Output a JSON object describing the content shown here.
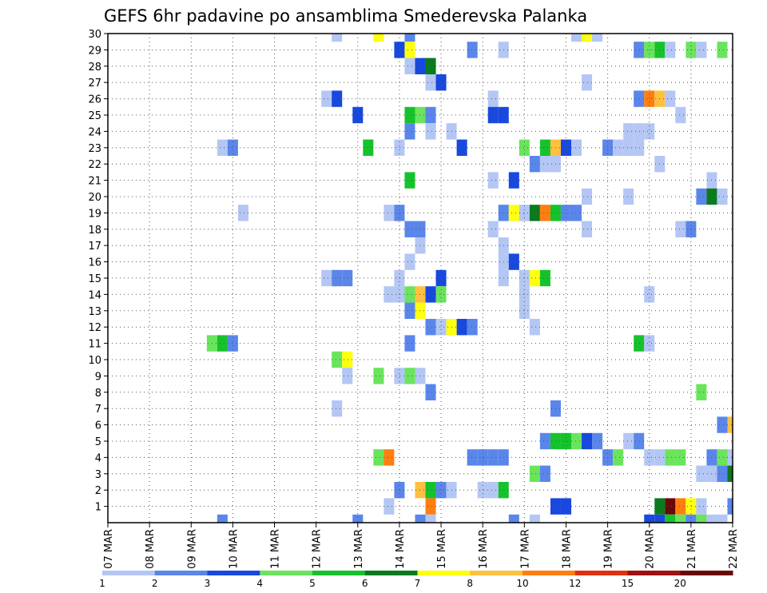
{
  "chart_data": {
    "type": "heatmap",
    "title": "GEFS 6hr padavine po ansamblima Smederevska Palanka",
    "x_tick_labels": [
      "07 MAR",
      "08 MAR",
      "09 MAR",
      "10 MAR",
      "11 MAR",
      "12 MAR",
      "13 MAR",
      "14 MAR",
      "15 MAR",
      "16 MAR",
      "17 MAR",
      "18 MAR",
      "19 MAR",
      "20 MAR",
      "21 MAR",
      "22 MAR"
    ],
    "y_tick_labels": [
      "1",
      "2",
      "3",
      "4",
      "5",
      "6",
      "7",
      "8",
      "9",
      "10",
      "11",
      "12",
      "13",
      "14",
      "15",
      "16",
      "17",
      "18",
      "19",
      "20",
      "21",
      "22",
      "23",
      "24",
      "25",
      "26",
      "27",
      "28",
      "29",
      "30"
    ],
    "xlim_days": [
      7,
      22
    ],
    "ylim_members": [
      0,
      30
    ],
    "grid": "dotted",
    "colorbar": {
      "tick_labels": [
        "1",
        "2",
        "3",
        "4",
        "5",
        "6",
        "7",
        "8",
        "10",
        "12",
        "15",
        "20"
      ],
      "colors": [
        "#b4c6f4",
        "#5a86ea",
        "#1848dd",
        "#6ae45c",
        "#16c22c",
        "#0a7a1e",
        "#ffff10",
        "#ffc040",
        "#ff7e10",
        "#e03010",
        "#a01010",
        "#6a0808"
      ]
    },
    "cells": [
      [
        30,
        12.5,
        0
      ],
      [
        30,
        13.5,
        6
      ],
      [
        30,
        14.25,
        1
      ],
      [
        30,
        18.25,
        0
      ],
      [
        30,
        18.5,
        6
      ],
      [
        30,
        18.75,
        0
      ],
      [
        29,
        14,
        2
      ],
      [
        29,
        14.25,
        6
      ],
      [
        29,
        15.75,
        1
      ],
      [
        29,
        16.5,
        0
      ],
      [
        29,
        19.75,
        1
      ],
      [
        29,
        20,
        3
      ],
      [
        29,
        20.25,
        4
      ],
      [
        29,
        20.5,
        0
      ],
      [
        29,
        21,
        3
      ],
      [
        29,
        21.25,
        0
      ],
      [
        29,
        21.75,
        3
      ],
      [
        28,
        14.25,
        0
      ],
      [
        28,
        14.5,
        2
      ],
      [
        28,
        14.75,
        0
      ],
      [
        28,
        14.75,
        5
      ],
      [
        27,
        14.75,
        0
      ],
      [
        27,
        15,
        2
      ],
      [
        27,
        18.5,
        0
      ],
      [
        26,
        12.25,
        0
      ],
      [
        26,
        12.5,
        2
      ],
      [
        26,
        16.25,
        0
      ],
      [
        26,
        19.75,
        1
      ],
      [
        26,
        20,
        8
      ],
      [
        26,
        20.25,
        7
      ],
      [
        26,
        20.5,
        0
      ],
      [
        25,
        13,
        2
      ],
      [
        25,
        14.25,
        4
      ],
      [
        25,
        14.5,
        3
      ],
      [
        25,
        14.75,
        1
      ],
      [
        25,
        16.25,
        2
      ],
      [
        25,
        16.5,
        2
      ],
      [
        25,
        20.75,
        0
      ],
      [
        24,
        14.25,
        1
      ],
      [
        24,
        14.75,
        0
      ],
      [
        24,
        15.25,
        0
      ],
      [
        24,
        19.5,
        0
      ],
      [
        24,
        19.75,
        0
      ],
      [
        24,
        20,
        0
      ],
      [
        23,
        9.75,
        0
      ],
      [
        23,
        10,
        1
      ],
      [
        23,
        13.25,
        4
      ],
      [
        23,
        14,
        0
      ],
      [
        23,
        15.5,
        2
      ],
      [
        23,
        17,
        3
      ],
      [
        23,
        17.5,
        4
      ],
      [
        23,
        17.75,
        7
      ],
      [
        23,
        18,
        2
      ],
      [
        23,
        18.25,
        0
      ],
      [
        23,
        19,
        1
      ],
      [
        23,
        19.25,
        0
      ],
      [
        23,
        19.5,
        0
      ],
      [
        23,
        19.75,
        0
      ],
      [
        22,
        17.25,
        1
      ],
      [
        22,
        17.5,
        0
      ],
      [
        22,
        17.75,
        0
      ],
      [
        22,
        20.25,
        0
      ],
      [
        21,
        14.25,
        4
      ],
      [
        21,
        16.25,
        0
      ],
      [
        21,
        16.75,
        2
      ],
      [
        21,
        21.5,
        0
      ],
      [
        20,
        18.5,
        0
      ],
      [
        20,
        19.5,
        0
      ],
      [
        20,
        21.25,
        1
      ],
      [
        20,
        21.5,
        5
      ],
      [
        20,
        21.75,
        0
      ],
      [
        19,
        10.25,
        0
      ],
      [
        19,
        13.75,
        0
      ],
      [
        19,
        14,
        1
      ],
      [
        19,
        16.5,
        1
      ],
      [
        19,
        16.75,
        6
      ],
      [
        19,
        17,
        0
      ],
      [
        19,
        17.25,
        5
      ],
      [
        19,
        17.5,
        8
      ],
      [
        19,
        17.75,
        4
      ],
      [
        19,
        18,
        1
      ],
      [
        19,
        18.25,
        1
      ],
      [
        18,
        14.25,
        1
      ],
      [
        18,
        14.5,
        1
      ],
      [
        18,
        16.25,
        0
      ],
      [
        18,
        18.5,
        0
      ],
      [
        18,
        20.75,
        0
      ],
      [
        18,
        21,
        1
      ],
      [
        17,
        14.5,
        0
      ],
      [
        17,
        16.5,
        0
      ],
      [
        16,
        14.25,
        0
      ],
      [
        16,
        16.5,
        0
      ],
      [
        16,
        16.75,
        2
      ],
      [
        15,
        12.25,
        0
      ],
      [
        15,
        12.5,
        1
      ],
      [
        15,
        12.75,
        1
      ],
      [
        15,
        14,
        0
      ],
      [
        15,
        15,
        2
      ],
      [
        15,
        16.5,
        0
      ],
      [
        15,
        17,
        0
      ],
      [
        15,
        17.25,
        6
      ],
      [
        15,
        17.5,
        4
      ],
      [
        14,
        13.75,
        0
      ],
      [
        14,
        14,
        0
      ],
      [
        14,
        14.25,
        3
      ],
      [
        14,
        14.5,
        7
      ],
      [
        14,
        14.75,
        2
      ],
      [
        14,
        15,
        3
      ],
      [
        14,
        17,
        0
      ],
      [
        14,
        20,
        0
      ],
      [
        13,
        14.25,
        1
      ],
      [
        13,
        14.5,
        6
      ],
      [
        13,
        17,
        0
      ],
      [
        12,
        14.75,
        1
      ],
      [
        12,
        15,
        0
      ],
      [
        12,
        15.25,
        6
      ],
      [
        12,
        15.5,
        2
      ],
      [
        12,
        15.75,
        1
      ],
      [
        12,
        17.25,
        0
      ],
      [
        11,
        9.5,
        3
      ],
      [
        11,
        9.75,
        4
      ],
      [
        11,
        10,
        1
      ],
      [
        11,
        14.25,
        1
      ],
      [
        11,
        19.75,
        4
      ],
      [
        11,
        20,
        0
      ],
      [
        10,
        12.5,
        3
      ],
      [
        10,
        12.75,
        6
      ],
      [
        9,
        12.75,
        0
      ],
      [
        9,
        13.5,
        3
      ],
      [
        9,
        14,
        0
      ],
      [
        9,
        14.25,
        3
      ],
      [
        9,
        14.5,
        0
      ],
      [
        8,
        14.75,
        1
      ],
      [
        8,
        21.25,
        3
      ],
      [
        7,
        12.5,
        0
      ],
      [
        7,
        17.75,
        1
      ],
      [
        6,
        21.75,
        1
      ],
      [
        6,
        22,
        7
      ],
      [
        5,
        17.5,
        1
      ],
      [
        5,
        17.75,
        4
      ],
      [
        5,
        18,
        4
      ],
      [
        5,
        18.25,
        3
      ],
      [
        5,
        18.5,
        2
      ],
      [
        5,
        18.75,
        1
      ],
      [
        5,
        19.5,
        0
      ],
      [
        5,
        19.75,
        1
      ],
      [
        4,
        13.5,
        3
      ],
      [
        4,
        13.75,
        8
      ],
      [
        4,
        15.75,
        1
      ],
      [
        4,
        16,
        1
      ],
      [
        4,
        16.25,
        1
      ],
      [
        4,
        16.5,
        1
      ],
      [
        4,
        19,
        1
      ],
      [
        4,
        19.25,
        3
      ],
      [
        4,
        20,
        0
      ],
      [
        4,
        20.25,
        0
      ],
      [
        4,
        20.5,
        3
      ],
      [
        4,
        20.75,
        3
      ],
      [
        4,
        21.5,
        1
      ],
      [
        4,
        21.75,
        3
      ],
      [
        4,
        22,
        0
      ],
      [
        3,
        17.25,
        3
      ],
      [
        3,
        17.5,
        1
      ],
      [
        3,
        21.25,
        0
      ],
      [
        3,
        21.5,
        0
      ],
      [
        3,
        21.75,
        1
      ],
      [
        3,
        22,
        5
      ],
      [
        2,
        14,
        1
      ],
      [
        2,
        14.5,
        7
      ],
      [
        2,
        14.75,
        4
      ],
      [
        2,
        15,
        1
      ],
      [
        2,
        15.25,
        0
      ],
      [
        2,
        16,
        0
      ],
      [
        2,
        16.25,
        0
      ],
      [
        2,
        16.5,
        4
      ],
      [
        1,
        13.75,
        0
      ],
      [
        1,
        14.75,
        8
      ],
      [
        1,
        17.75,
        2
      ],
      [
        1,
        18,
        2
      ],
      [
        1,
        20.25,
        5
      ],
      [
        1,
        20.5,
        11
      ],
      [
        1,
        20.75,
        8
      ],
      [
        1,
        21,
        6
      ],
      [
        1,
        21.25,
        0
      ],
      [
        1,
        22,
        1
      ],
      [
        0,
        9.75,
        1
      ],
      [
        0,
        13,
        1
      ],
      [
        0,
        14.5,
        1
      ],
      [
        0,
        14.75,
        0
      ],
      [
        0,
        16.75,
        1
      ],
      [
        0,
        17.25,
        0
      ],
      [
        0,
        20,
        2
      ],
      [
        0,
        20.25,
        2
      ],
      [
        0,
        20.5,
        4
      ],
      [
        0,
        20.75,
        3
      ],
      [
        0,
        21,
        1
      ],
      [
        0,
        21.25,
        3
      ],
      [
        0,
        21.5,
        0
      ],
      [
        0,
        21.75,
        0
      ]
    ]
  }
}
